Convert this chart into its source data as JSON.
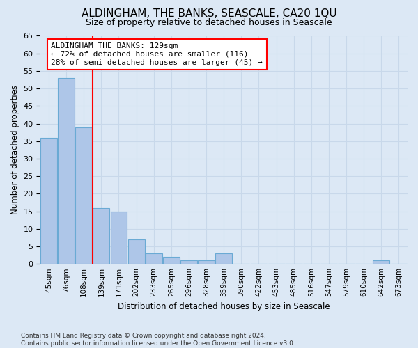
{
  "title": "ALDINGHAM, THE BANKS, SEASCALE, CA20 1QU",
  "subtitle": "Size of property relative to detached houses in Seascale",
  "xlabel": "Distribution of detached houses by size in Seascale",
  "ylabel": "Number of detached properties",
  "footer_line1": "Contains HM Land Registry data © Crown copyright and database right 2024.",
  "footer_line2": "Contains public sector information licensed under the Open Government Licence v3.0.",
  "bar_labels": [
    "45sqm",
    "76sqm",
    "108sqm",
    "139sqm",
    "171sqm",
    "202sqm",
    "233sqm",
    "265sqm",
    "296sqm",
    "328sqm",
    "359sqm",
    "390sqm",
    "422sqm",
    "453sqm",
    "485sqm",
    "516sqm",
    "547sqm",
    "579sqm",
    "610sqm",
    "642sqm",
    "673sqm"
  ],
  "bar_values": [
    36,
    53,
    39,
    16,
    15,
    7,
    3,
    2,
    1,
    1,
    3,
    0,
    0,
    0,
    0,
    0,
    0,
    0,
    0,
    1,
    0
  ],
  "bar_color": "#aec6e8",
  "bar_edge_color": "#6aaad4",
  "vline_x": 2.5,
  "vline_color": "red",
  "annotation_text": "ALDINGHAM THE BANKS: 129sqm\n← 72% of detached houses are smaller (116)\n28% of semi-detached houses are larger (45) →",
  "annotation_box_color": "white",
  "annotation_box_edge_color": "red",
  "ylim": [
    0,
    65
  ],
  "yticks": [
    0,
    5,
    10,
    15,
    20,
    25,
    30,
    35,
    40,
    45,
    50,
    55,
    60,
    65
  ],
  "grid_color": "#c8d8ea",
  "background_color": "#dce8f5",
  "plot_bg_color": "#dce8f5",
  "title_fontsize": 11,
  "subtitle_fontsize": 9
}
